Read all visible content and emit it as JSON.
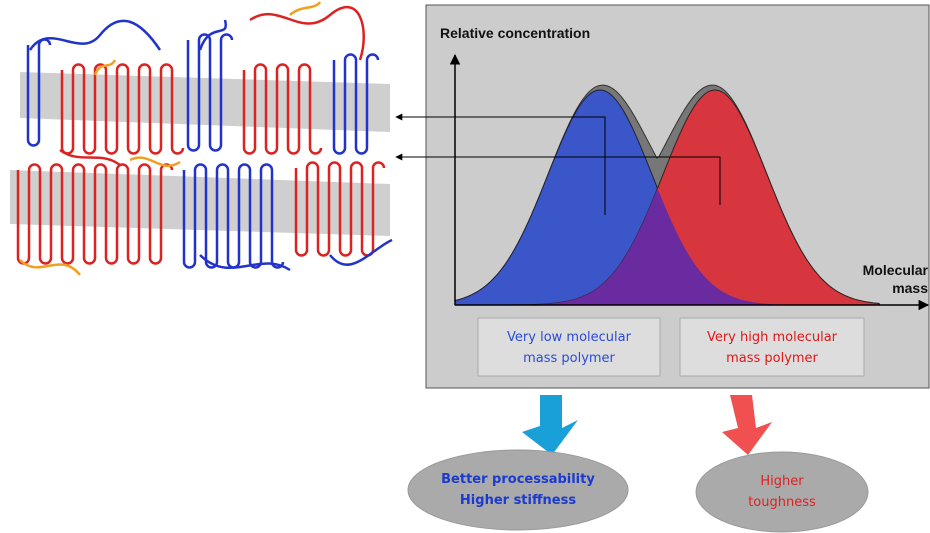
{
  "diagram": {
    "y_axis_label": "Relative concentration",
    "x_axis_label": [
      "Molecular",
      "mass"
    ],
    "low_box": [
      "Very low molecular",
      "mass polymer"
    ],
    "high_box": [
      "Very high molecular",
      "mass polymer"
    ],
    "low_result": [
      "Better processability",
      "Higher stiffness"
    ],
    "high_result": [
      "Higher",
      "toughness"
    ]
  }
}
